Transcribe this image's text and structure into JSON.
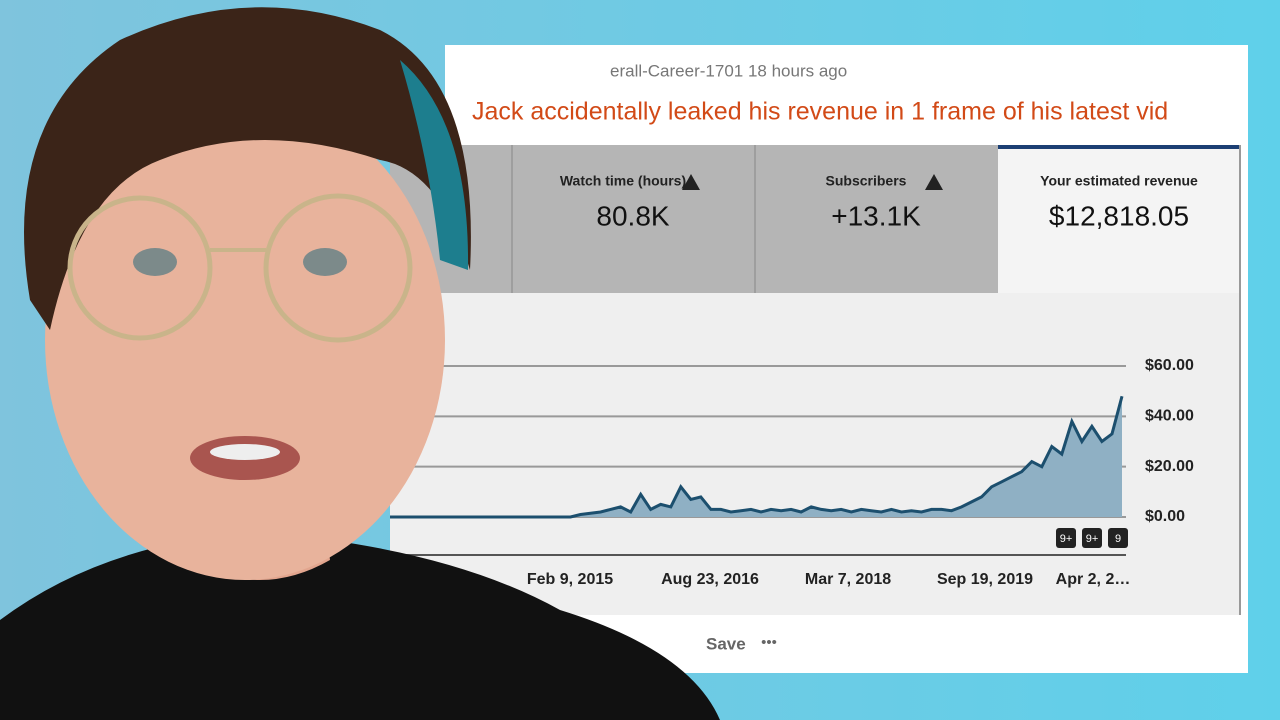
{
  "post": {
    "meta": "erall-Career-1701 18 hours ago",
    "title": "Jack accidentally leaked his revenue in 1 frame of his latest vid",
    "actions": {
      "save": "Save",
      "more": "•••"
    }
  },
  "cards": [
    {
      "label": "Watch time (hours)",
      "value": "80.8K"
    },
    {
      "label": "Subscribers",
      "value": "+13.1K"
    },
    {
      "label": "Your estimated revenue",
      "value": "$12,818.05"
    }
  ],
  "badges": [
    "9+",
    "9+",
    "9"
  ],
  "chart_data": {
    "type": "area",
    "color": "#1c4f6e",
    "yticks": [
      {
        "value": 0,
        "label": "$0.00"
      },
      {
        "value": 20,
        "label": "$20.00"
      },
      {
        "value": 40,
        "label": "$40.00"
      },
      {
        "value": 60,
        "label": "$60.00"
      }
    ],
    "ylim": [
      0,
      60
    ],
    "xtick_labels": [
      "Feb 9, 2015",
      "Aug 23, 2016",
      "Mar 7, 2018",
      "Sep 19, 2019",
      "Apr 2, 2…"
    ],
    "values": [
      0,
      0,
      0,
      0,
      0,
      0,
      0,
      0,
      0,
      0,
      0,
      0,
      0,
      0,
      0,
      0,
      0,
      0,
      0,
      1,
      1.5,
      2,
      3,
      4,
      2,
      9,
      3,
      5,
      4,
      12,
      7,
      8,
      3,
      3,
      2,
      2.5,
      3,
      2,
      3,
      2.5,
      3,
      2,
      4,
      3,
      2.5,
      3,
      2,
      3,
      2.5,
      2,
      3,
      2,
      2.5,
      2,
      3,
      3,
      2.5,
      4,
      6,
      8,
      12,
      14,
      16,
      18,
      22,
      20,
      28,
      25,
      38,
      30,
      36,
      30,
      33,
      48
    ]
  }
}
